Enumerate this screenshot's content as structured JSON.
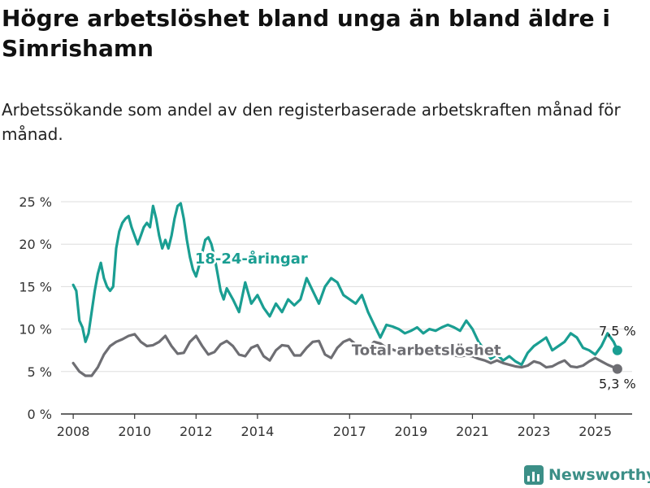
{
  "title": "Högre arbetslöshet bland unga än bland äldre i Simrishamn",
  "subtitle": "Arbetssökande som andel av den registerbaserade arbetskraften månad för månad.",
  "brand": {
    "name": "Newsworthy",
    "icon": "bar-chart-logo-icon"
  },
  "colors": {
    "youth": "#1a9e92",
    "total": "#6e6e73",
    "grid": "#dddddd",
    "axis": "#333333",
    "brand": "#3c8f87"
  },
  "chart_data": {
    "type": "line",
    "x_axis": {
      "ticks": [
        "2008",
        "2010",
        "2012",
        "2014",
        "2017",
        "2019",
        "2021",
        "2023",
        "2025"
      ],
      "range": [
        2007.6,
        2026.2
      ]
    },
    "y_axis": {
      "ticks": [
        0,
        5,
        10,
        15,
        20,
        25
      ],
      "tick_labels": [
        "0 %",
        "5 %",
        "10 %",
        "15 %",
        "20 %",
        "25 %"
      ],
      "range": [
        0,
        25
      ]
    },
    "grid": "horizontal",
    "series": [
      {
        "name": "18-24-åringar",
        "color": "#1a9e92",
        "end_label": "7,5 %",
        "x": [
          2008.0,
          2008.1,
          2008.2,
          2008.3,
          2008.4,
          2008.5,
          2008.6,
          2008.7,
          2008.8,
          2008.9,
          2009.0,
          2009.1,
          2009.2,
          2009.3,
          2009.4,
          2009.5,
          2009.6,
          2009.7,
          2009.8,
          2009.9,
          2010.0,
          2010.1,
          2010.2,
          2010.3,
          2010.4,
          2010.5,
          2010.6,
          2010.7,
          2010.8,
          2010.9,
          2011.0,
          2011.1,
          2011.2,
          2011.3,
          2011.4,
          2011.5,
          2011.6,
          2011.7,
          2011.8,
          2011.9,
          2012.0,
          2012.1,
          2012.2,
          2012.3,
          2012.4,
          2012.5,
          2012.6,
          2012.7,
          2012.8,
          2012.9,
          2013.0,
          2013.2,
          2013.4,
          2013.6,
          2013.8,
          2014.0,
          2014.2,
          2014.4,
          2014.6,
          2014.8,
          2015.0,
          2015.2,
          2015.4,
          2015.6,
          2015.8,
          2016.0,
          2016.2,
          2016.4,
          2016.6,
          2016.8,
          2017.0,
          2017.2,
          2017.4,
          2017.6,
          2017.8,
          2018.0,
          2018.2,
          2018.4,
          2018.6,
          2018.8,
          2019.0,
          2019.2,
          2019.4,
          2019.6,
          2019.8,
          2020.0,
          2020.2,
          2020.4,
          2020.6,
          2020.8,
          2021.0,
          2021.2,
          2021.4,
          2021.6,
          2021.8,
          2022.0,
          2022.2,
          2022.4,
          2022.6,
          2022.8,
          2023.0,
          2023.2,
          2023.4,
          2023.6,
          2023.8,
          2024.0,
          2024.2,
          2024.4,
          2024.6,
          2024.8,
          2025.0,
          2025.2,
          2025.4,
          2025.6,
          2025.72
        ],
        "y": [
          15.2,
          14.5,
          11.0,
          10.2,
          8.5,
          9.5,
          12.0,
          14.5,
          16.5,
          17.8,
          16.0,
          15.0,
          14.5,
          15.0,
          19.5,
          21.5,
          22.5,
          23.0,
          23.3,
          22.0,
          21.0,
          20.0,
          21.0,
          22.0,
          22.5,
          22.0,
          24.5,
          23.0,
          21.0,
          19.5,
          20.5,
          19.5,
          21.0,
          23.0,
          24.5,
          24.8,
          23.0,
          20.5,
          18.5,
          17.0,
          16.2,
          17.5,
          19.0,
          20.5,
          20.8,
          20.0,
          18.5,
          16.5,
          14.5,
          13.5,
          14.8,
          13.5,
          12.0,
          15.5,
          13.0,
          14.0,
          12.5,
          11.5,
          13.0,
          12.0,
          13.5,
          12.8,
          13.5,
          16.0,
          14.5,
          13.0,
          15.0,
          16.0,
          15.5,
          14.0,
          13.5,
          13.0,
          14.0,
          12.0,
          10.5,
          9.0,
          10.5,
          10.3,
          10.0,
          9.5,
          9.8,
          10.2,
          9.5,
          10.0,
          9.8,
          10.2,
          10.5,
          10.2,
          9.8,
          11.0,
          10.0,
          8.5,
          7.5,
          6.5,
          7.0,
          6.3,
          6.8,
          6.2,
          5.8,
          7.2,
          8.0,
          8.5,
          9.0,
          7.5,
          8.0,
          8.5,
          9.5,
          9.0,
          7.8,
          7.5,
          7.0,
          8.0,
          9.5,
          8.5,
          7.5
        ]
      },
      {
        "name": "Total arbetslöshet",
        "color": "#6e6e73",
        "end_label": "5,3 %",
        "x": [
          2008.0,
          2008.2,
          2008.4,
          2008.6,
          2008.8,
          2009.0,
          2009.2,
          2009.4,
          2009.6,
          2009.8,
          2010.0,
          2010.2,
          2010.4,
          2010.6,
          2010.8,
          2011.0,
          2011.2,
          2011.4,
          2011.6,
          2011.8,
          2012.0,
          2012.2,
          2012.4,
          2012.6,
          2012.8,
          2013.0,
          2013.2,
          2013.4,
          2013.6,
          2013.8,
          2014.0,
          2014.2,
          2014.4,
          2014.6,
          2014.8,
          2015.0,
          2015.2,
          2015.4,
          2015.6,
          2015.8,
          2016.0,
          2016.2,
          2016.4,
          2016.6,
          2016.8,
          2017.0,
          2017.2,
          2017.4,
          2017.6,
          2017.8,
          2018.0,
          2018.2,
          2018.4,
          2018.6,
          2018.8,
          2019.0,
          2019.2,
          2019.4,
          2019.6,
          2019.8,
          2020.0,
          2020.2,
          2020.4,
          2020.6,
          2020.8,
          2021.0,
          2021.2,
          2021.4,
          2021.6,
          2021.8,
          2022.0,
          2022.2,
          2022.4,
          2022.6,
          2022.8,
          2023.0,
          2023.2,
          2023.4,
          2023.6,
          2023.8,
          2024.0,
          2024.2,
          2024.4,
          2024.6,
          2024.8,
          2025.0,
          2025.2,
          2025.4,
          2025.6,
          2025.72
        ],
        "y": [
          6.0,
          5.0,
          4.5,
          4.5,
          5.5,
          7.0,
          8.0,
          8.5,
          8.8,
          9.2,
          9.4,
          8.5,
          8.0,
          8.1,
          8.5,
          9.2,
          8.0,
          7.1,
          7.2,
          8.5,
          9.2,
          8.0,
          7.0,
          7.3,
          8.2,
          8.6,
          8.0,
          7.0,
          6.8,
          7.8,
          8.1,
          6.8,
          6.3,
          7.5,
          8.1,
          8.0,
          6.9,
          6.9,
          7.8,
          8.5,
          8.6,
          7.0,
          6.6,
          7.8,
          8.5,
          8.8,
          8.2,
          7.5,
          7.8,
          8.5,
          8.3,
          7.8,
          7.6,
          7.3,
          7.5,
          7.6,
          7.3,
          7.2,
          7.1,
          7.4,
          7.5,
          7.0,
          6.9,
          6.8,
          6.9,
          6.8,
          6.5,
          6.3,
          6.0,
          6.3,
          6.0,
          5.8,
          5.6,
          5.5,
          5.7,
          6.2,
          6.0,
          5.5,
          5.6,
          6.0,
          6.3,
          5.6,
          5.5,
          5.7,
          6.2,
          6.6,
          6.2,
          5.8,
          5.5,
          5.3
        ]
      }
    ],
    "annotations": [
      {
        "series": 0,
        "text": "18-24-åringar",
        "x": 2013.8,
        "y": 18.3
      },
      {
        "series": 1,
        "text": "Total arbetslöshet",
        "x": 2019.5,
        "y": 7.5
      }
    ]
  }
}
